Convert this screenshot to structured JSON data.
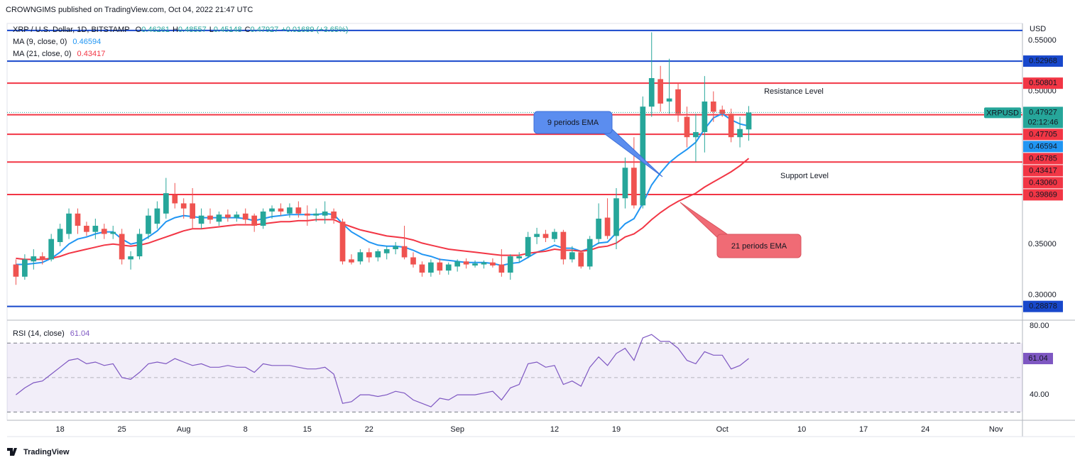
{
  "header": {
    "text": "CROWNGIMS published on TradingView.com, Oct 04, 2022 21:47 UTC"
  },
  "footer": {
    "brand": "TradingView"
  },
  "chart_data": {
    "type": "candlestick",
    "currency": "USD",
    "legend": {
      "symbol": "XRP / U.S. Dollar, 1D, BITSTAMP",
      "prefixes": [
        "O",
        "H",
        "L",
        "C"
      ],
      "change": "+0.01689 (+3.65%)"
    },
    "symbol_tag": "XRPUSD",
    "countdown": "02:12:46",
    "up_color": "#26a69a",
    "down_color": "#ef5350",
    "x": [
      "Jul 13",
      "Jul 14",
      "Jul 15",
      "Jul 16",
      "Jul 17",
      "Jul 18",
      "Jul 19",
      "Jul 20",
      "Jul 21",
      "Jul 22",
      "Jul 23",
      "Jul 24",
      "Jul 25",
      "Jul 26",
      "Jul 27",
      "Jul 28",
      "Jul 29",
      "Jul 30",
      "Jul 31",
      "Aug 1",
      "Aug 2",
      "Aug 3",
      "Aug 4",
      "Aug 5",
      "Aug 6",
      "Aug 7",
      "Aug 8",
      "Aug 9",
      "Aug 10",
      "Aug 11",
      "Aug 12",
      "Aug 13",
      "Aug 14",
      "Aug 15",
      "Aug 16",
      "Aug 17",
      "Aug 18",
      "Aug 19",
      "Aug 20",
      "Aug 21",
      "Aug 22",
      "Aug 23",
      "Aug 24",
      "Aug 25",
      "Aug 26",
      "Aug 27",
      "Aug 28",
      "Aug 29",
      "Aug 30",
      "Aug 31",
      "Sep 1",
      "Sep 2",
      "Sep 3",
      "Sep 4",
      "Sep 5",
      "Sep 6",
      "Sep 7",
      "Sep 8",
      "Sep 9",
      "Sep 10",
      "Sep 11",
      "Sep 12",
      "Sep 13",
      "Sep 14",
      "Sep 15",
      "Sep 16",
      "Sep 17",
      "Sep 18",
      "Sep 19",
      "Sep 20",
      "Sep 21",
      "Sep 22",
      "Sep 23",
      "Sep 24",
      "Sep 25",
      "Sep 26",
      "Sep 27",
      "Sep 28",
      "Sep 29",
      "Sep 30",
      "Oct 1",
      "Oct 2",
      "Oct 3",
      "Oct 4"
    ],
    "open": [
      0.33,
      0.318,
      0.333,
      0.338,
      0.335,
      0.352,
      0.36,
      0.38,
      0.368,
      0.362,
      0.365,
      0.36,
      0.36,
      0.335,
      0.338,
      0.36,
      0.37,
      0.38,
      0.398,
      0.39,
      0.39,
      0.37,
      0.378,
      0.372,
      0.379,
      0.376,
      0.38,
      0.378,
      0.368,
      0.382,
      0.385,
      0.38,
      0.386,
      0.38,
      0.378,
      0.378,
      0.382,
      0.372,
      0.335,
      0.333,
      0.342,
      0.337,
      0.341,
      0.345,
      0.348,
      0.337,
      0.33,
      0.322,
      0.332,
      0.324,
      0.328,
      0.333,
      0.329,
      0.33,
      0.332,
      0.33,
      0.322,
      0.336,
      0.338,
      0.357,
      0.36,
      0.355,
      0.362,
      0.335,
      0.342,
      0.328,
      0.355,
      0.376,
      0.358,
      0.395,
      0.425,
      0.388,
      0.485,
      0.512,
      0.49,
      0.502,
      0.475,
      0.455,
      0.46,
      0.49,
      0.482,
      0.478,
      0.455,
      0.46261
    ],
    "high": [
      0.335,
      0.34,
      0.345,
      0.342,
      0.36,
      0.37,
      0.385,
      0.385,
      0.372,
      0.375,
      0.37,
      0.368,
      0.365,
      0.343,
      0.365,
      0.385,
      0.392,
      0.415,
      0.41,
      0.395,
      0.405,
      0.385,
      0.385,
      0.382,
      0.384,
      0.382,
      0.385,
      0.38,
      0.385,
      0.388,
      0.39,
      0.39,
      0.392,
      0.388,
      0.385,
      0.392,
      0.385,
      0.375,
      0.34,
      0.345,
      0.346,
      0.345,
      0.348,
      0.352,
      0.368,
      0.342,
      0.333,
      0.335,
      0.336,
      0.332,
      0.335,
      0.336,
      0.334,
      0.334,
      0.336,
      0.345,
      0.34,
      0.342,
      0.362,
      0.366,
      0.364,
      0.365,
      0.364,
      0.348,
      0.344,
      0.358,
      0.39,
      0.395,
      0.405,
      0.435,
      0.455,
      0.495,
      0.558,
      0.525,
      0.532,
      0.508,
      0.485,
      0.478,
      0.515,
      0.5,
      0.486,
      0.483,
      0.475,
      0.48557
    ],
    "low": [
      0.31,
      0.315,
      0.325,
      0.33,
      0.333,
      0.348,
      0.355,
      0.36,
      0.358,
      0.355,
      0.355,
      0.355,
      0.33,
      0.325,
      0.335,
      0.355,
      0.365,
      0.375,
      0.385,
      0.375,
      0.365,
      0.365,
      0.37,
      0.368,
      0.372,
      0.372,
      0.37,
      0.362,
      0.365,
      0.375,
      0.378,
      0.376,
      0.376,
      0.368,
      0.372,
      0.37,
      0.37,
      0.33,
      0.33,
      0.33,
      0.332,
      0.333,
      0.335,
      0.34,
      0.335,
      0.327,
      0.318,
      0.318,
      0.32,
      0.32,
      0.323,
      0.326,
      0.327,
      0.326,
      0.327,
      0.318,
      0.315,
      0.332,
      0.336,
      0.35,
      0.352,
      0.352,
      0.33,
      0.332,
      0.326,
      0.325,
      0.35,
      0.355,
      0.345,
      0.385,
      0.385,
      0.385,
      0.475,
      0.48,
      0.478,
      0.47,
      0.445,
      0.431,
      0.44,
      0.47,
      0.475,
      0.45,
      0.445,
      0.45148
    ],
    "close": [
      0.318,
      0.335,
      0.338,
      0.335,
      0.355,
      0.365,
      0.38,
      0.368,
      0.362,
      0.368,
      0.36,
      0.362,
      0.335,
      0.338,
      0.36,
      0.378,
      0.385,
      0.4,
      0.39,
      0.385,
      0.375,
      0.378,
      0.374,
      0.379,
      0.376,
      0.379,
      0.374,
      0.368,
      0.382,
      0.385,
      0.382,
      0.386,
      0.38,
      0.378,
      0.38,
      0.382,
      0.375,
      0.333,
      0.332,
      0.342,
      0.337,
      0.343,
      0.345,
      0.348,
      0.337,
      0.33,
      0.322,
      0.332,
      0.324,
      0.33,
      0.333,
      0.33,
      0.331,
      0.332,
      0.329,
      0.322,
      0.338,
      0.338,
      0.357,
      0.36,
      0.356,
      0.362,
      0.335,
      0.342,
      0.328,
      0.355,
      0.375,
      0.358,
      0.395,
      0.425,
      0.388,
      0.485,
      0.513,
      0.488,
      0.493,
      0.478,
      0.455,
      0.46,
      0.49,
      0.48,
      0.478,
      0.455,
      0.463,
      0.47927
    ],
    "series": [
      {
        "name": "MA (9, close, 0)",
        "color": "#2196f3",
        "values": [
          0.33,
          0.33,
          0.331,
          0.332,
          0.336,
          0.342,
          0.35,
          0.355,
          0.357,
          0.36,
          0.362,
          0.362,
          0.355,
          0.35,
          0.352,
          0.357,
          0.363,
          0.372,
          0.376,
          0.378,
          0.377,
          0.376,
          0.376,
          0.376,
          0.376,
          0.376,
          0.375,
          0.373,
          0.375,
          0.377,
          0.378,
          0.379,
          0.379,
          0.379,
          0.379,
          0.38,
          0.379,
          0.37,
          0.362,
          0.357,
          0.352,
          0.349,
          0.348,
          0.348,
          0.347,
          0.344,
          0.34,
          0.338,
          0.335,
          0.334,
          0.333,
          0.332,
          0.332,
          0.332,
          0.331,
          0.329,
          0.331,
          0.332,
          0.337,
          0.342,
          0.345,
          0.349,
          0.346,
          0.346,
          0.343,
          0.346,
          0.351,
          0.352,
          0.361,
          0.37,
          0.375,
          0.39,
          0.408,
          0.42,
          0.43,
          0.437,
          0.443,
          0.45,
          0.463,
          0.474,
          0.478,
          0.472,
          0.468,
          0.46594
        ]
      },
      {
        "name": "MA (21, close, 0)",
        "color": "#f23645",
        "values": [
          0.336,
          0.335,
          0.335,
          0.335,
          0.336,
          0.338,
          0.341,
          0.343,
          0.345,
          0.347,
          0.349,
          0.35,
          0.349,
          0.348,
          0.349,
          0.351,
          0.354,
          0.357,
          0.36,
          0.363,
          0.365,
          0.365,
          0.366,
          0.367,
          0.368,
          0.369,
          0.369,
          0.369,
          0.37,
          0.371,
          0.372,
          0.372,
          0.373,
          0.373,
          0.374,
          0.374,
          0.374,
          0.37,
          0.367,
          0.364,
          0.362,
          0.36,
          0.358,
          0.357,
          0.356,
          0.354,
          0.351,
          0.349,
          0.347,
          0.345,
          0.344,
          0.343,
          0.342,
          0.341,
          0.34,
          0.339,
          0.339,
          0.339,
          0.341,
          0.342,
          0.343,
          0.345,
          0.344,
          0.344,
          0.343,
          0.344,
          0.347,
          0.348,
          0.351,
          0.357,
          0.36,
          0.366,
          0.374,
          0.381,
          0.387,
          0.392,
          0.396,
          0.4,
          0.406,
          0.411,
          0.416,
          0.421,
          0.427,
          0.43417
        ]
      }
    ],
    "levels": {
      "values": [
        0.5598,
        0.52968,
        0.50801,
        0.47705,
        0.45785,
        0.4306,
        0.39869,
        0.28878
      ],
      "value_labels": [
        null,
        "0.52968",
        "0.50801",
        "0.47705",
        "0.45785",
        "0.43060",
        "0.39869",
        "0.28878"
      ],
      "colors": [
        "#1848cc",
        "#1848cc",
        "#f23645",
        "#f23645",
        "#f23645",
        "#f23645",
        "#f23645",
        "#1848cc"
      ]
    },
    "xlim": [
      "Jul 12",
      "Nov 4"
    ],
    "xticks": [
      {
        "value": "Jul 18",
        "label": "18"
      },
      {
        "value": "Jul 25",
        "label": "25"
      },
      {
        "value": "Aug 1",
        "label": "Aug"
      },
      {
        "value": "Aug 8",
        "label": "8"
      },
      {
        "value": "Aug 15",
        "label": "15"
      },
      {
        "value": "Aug 22",
        "label": "22"
      },
      {
        "value": "Sep 1",
        "label": "Sep"
      },
      {
        "value": "Sep 12",
        "label": "12"
      },
      {
        "value": "Sep 19",
        "label": "19"
      },
      {
        "value": "Oct 1",
        "label": "Oct"
      },
      {
        "value": "Oct 10",
        "label": "10"
      },
      {
        "value": "Oct 17",
        "label": "17"
      },
      {
        "value": "Oct 24",
        "label": "24"
      },
      {
        "value": "Nov 1",
        "label": "Nov"
      }
    ],
    "ylim": [
      0.276,
      0.5653
    ],
    "yticks": [
      {
        "value": 0.55,
        "label": "0.55000"
      },
      {
        "value": 0.5,
        "label": "0.50000"
      },
      {
        "value": 0.35,
        "label": "0.35000"
      },
      {
        "value": 0.3,
        "label": "0.30000"
      }
    ],
    "annotations": [
      {
        "text": "Resistance Level",
        "color": "#f23645"
      },
      {
        "text": "Support Level",
        "color": "#2962ff"
      },
      {
        "text": "9 periods EMA",
        "color": "#5b8def"
      },
      {
        "text": "21 periods EMA",
        "color": "#f06b75"
      }
    ],
    "rsi": {
      "name": "RSI (14, close)",
      "color": "#7e57c2",
      "values": [
        40,
        44,
        47,
        48,
        52,
        56,
        60,
        61,
        58,
        59,
        57,
        58,
        50,
        49,
        53,
        58,
        59,
        58,
        61,
        59,
        57,
        58,
        56,
        56,
        57,
        56,
        56,
        53,
        58,
        57,
        57,
        57,
        56,
        55,
        55,
        56,
        52,
        35,
        36,
        40,
        40,
        39,
        40,
        42,
        41,
        37,
        35,
        33,
        38,
        37,
        40,
        40,
        40,
        41,
        42,
        37,
        44,
        46,
        58,
        59,
        56,
        57,
        46,
        48,
        45,
        56,
        62,
        57,
        64,
        67,
        60,
        73,
        75,
        71,
        71,
        67,
        60,
        58,
        65,
        63,
        63,
        55,
        57,
        61.04
      ],
      "ylim": [
        25.2,
        82.9
      ],
      "yticks": [
        {
          "value": 80,
          "label": "80.00"
        },
        {
          "value": 40,
          "label": "40.00"
        }
      ],
      "band": [
        30,
        70
      ]
    }
  }
}
